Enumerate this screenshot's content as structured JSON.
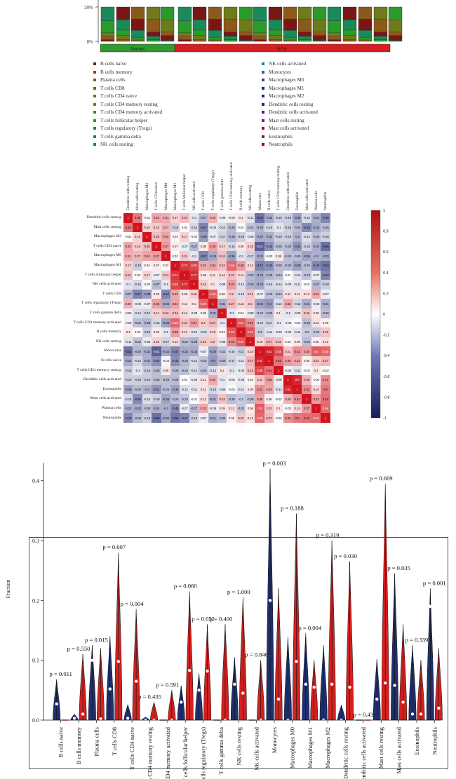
{
  "stacked_bar": {
    "y_ticks": [
      "20%",
      "0%"
    ],
    "groups": [
      {
        "label": "Normal",
        "color": "#2f9a2f"
      },
      {
        "label": "KOA",
        "color": "#d42020"
      }
    ]
  },
  "legend": {
    "left": [
      {
        "label": "B cells naive",
        "color": "#8b1a1a"
      },
      {
        "label": "B cells memory",
        "color": "#a0401f"
      },
      {
        "label": "Plasma cells",
        "color": "#8b5a1a"
      },
      {
        "label": "T cells CD8",
        "color": "#7a6b16"
      },
      {
        "label": "T cells CD4 naive",
        "color": "#6f7a1a"
      },
      {
        "label": "T cells CD4 memory resting",
        "color": "#5a8a1a"
      },
      {
        "label": "T cells CD4 memory activated",
        "color": "#3f8f20"
      },
      {
        "label": "T cells follicular helper",
        "color": "#2a9a2a"
      },
      {
        "label": "T cells regulatory (Tregs)",
        "color": "#20903f"
      },
      {
        "label": "T cells gamma delta",
        "color": "#1a8a5a"
      },
      {
        "label": "NK cells resting",
        "color": "#168a7a"
      }
    ],
    "right": [
      {
        "label": "NK cells activated",
        "color": "#168a8a"
      },
      {
        "label": "Monocytes",
        "color": "#1a6a8a"
      },
      {
        "label": "Macrophages M0",
        "color": "#1a4f8a"
      },
      {
        "label": "Macrophages M1",
        "color": "#1f308a"
      },
      {
        "label": "Macrophages M2",
        "color": "#2a1f8a"
      },
      {
        "label": "Dendritic cells resting",
        "color": "#401a8a"
      },
      {
        "label": "Dendritic cells activated",
        "color": "#5a1a8a"
      },
      {
        "label": "Mast cells resting",
        "color": "#7a1a7a"
      },
      {
        "label": "Mast cells activated",
        "color": "#8a1a5a"
      },
      {
        "label": "Eosinophils",
        "color": "#8a1a40"
      },
      {
        "label": "Neutrophils",
        "color": "#8a1a2a"
      }
    ]
  },
  "heatmap": {
    "labels": [
      "Dendritic cells resting",
      "Mast cells resting",
      "Macrophages M2",
      "T cells CD4 naive",
      "Macrophages M0",
      "Macrophages M1",
      "T cells follicular helper",
      "NK cells activated",
      "T cells CD8",
      "T cells regulatory (Tregs)",
      "T cells gamma delta",
      "T cells CD4 memory activated",
      "B cells memory",
      "NK cells resting",
      "Monocytes",
      "B cells naive",
      "T cells CD4 memory resting",
      "Dendritic cells activated",
      "Eosinophils",
      "Mast cells activated",
      "Plasma cells",
      "Neutrophils"
    ],
    "colorbar_ticks": [
      "1",
      "0.8",
      "0.6",
      "0.4",
      "0.2",
      "0",
      "-0.2",
      "-0.4",
      "-0.6",
      "-0.8",
      "-1"
    ],
    "matrix": [
      [
        1,
        0.49,
        -0.01,
        0.33,
        0.31,
        0.17,
        0.24,
        -0.1,
        -0.27,
        0.29,
        -0.06,
        -0.06,
        0.1,
        -0.11,
        -0.53,
        -0.32,
        -0.19,
        -0.19,
        -0.36,
        -0.15,
        -0.31,
        -0.46
      ],
      [
        0.49,
        1,
        0.16,
        0.19,
        0.27,
        -0.19,
        0.02,
        -0.15,
        -0.47,
        -0.09,
        -0.14,
        -0.25,
        0.02,
        -0.23,
        -0.28,
        -0.16,
        -0.1,
        -0.19,
        -0.26,
        -0.45,
        -0.33,
        -0.26
      ],
      [
        -0.01,
        0.16,
        1,
        0.25,
        0.34,
        0.04,
        0.17,
        -0.02,
        -0.38,
        -0.07,
        -0.17,
        -0.28,
        -0.19,
        -0.08,
        -0.32,
        -0.31,
        -0.19,
        -0.19,
        -0.3,
        -0.13,
        -0.25,
        -0.18
      ],
      [
        0.33,
        0.19,
        0.25,
        1,
        0.37,
        0.07,
        -0.07,
        -0.27,
        0.08,
        0.35,
        0.17,
        -0.15,
        0.08,
        0.18,
        -0.61,
        -0.42,
        -0.25,
        -0.25,
        -0.41,
        -0.18,
        -0.31,
        -0.55
      ],
      [
        0.31,
        0.27,
        0.34,
        0.37,
        1,
        0.02,
        0.21,
        -0.1,
        -0.47,
        -0.33,
        0.24,
        -0.36,
        -0.1,
        -0.17,
        -0.33,
        -0.03,
        0.08,
        -0.25,
        -0.25,
        -0.35,
        -0.3,
        -0.33
      ],
      [
        0.17,
        -0.19,
        0.04,
        0.07,
        0.02,
        1,
        0.74,
        0.69,
        0.32,
        0.34,
        0.24,
        0.56,
        0.36,
        0.14,
        -0.47,
        -0.43,
        -0.26,
        -0.26,
        -0.36,
        -0.25,
        -0.45,
        -0.53
      ],
      [
        0.24,
        0.02,
        0.17,
        -0.07,
        0.21,
        0.74,
        1,
        0.77,
        0.09,
        0.11,
        0.14,
        0.24,
        0.14,
        -0.26,
        -0.33,
        -0.28,
        -0.24,
        0.01,
        -0.12,
        -0.23,
        -0.07,
        -0.47
      ],
      [
        -0.1,
        -0.15,
        -0.02,
        -0.27,
        -0.1,
        0.69,
        0.77,
        1,
        0.18,
        0.1,
        -0.08,
        0.37,
        -0.12,
        -0.29,
        -0.33,
        -0.15,
        -0.14,
        -0.08,
        -0.11,
        -0.01,
        -0.27,
        -0.19
      ],
      [
        -0.27,
        -0.47,
        -0.38,
        0.08,
        -0.47,
        0.32,
        0.09,
        0.18,
        1,
        0.59,
        0.06,
        0.2,
        -0.13,
        0.21,
        -0.07,
        -0.23,
        -0.24,
        0.11,
        0.11,
        0.12,
        0.32,
        -0.07
      ],
      [
        0.29,
        -0.09,
        -0.07,
        0.35,
        -0.33,
        0.34,
        0.11,
        0.1,
        0.59,
        1,
        -0.31,
        0.27,
        0.16,
        0.2,
        -0.36,
        -0.4,
        -0.13,
        0.32,
        -0.16,
        -0.31,
        -0.08,
        -0.31
      ],
      [
        -0.06,
        -0.14,
        -0.17,
        0.17,
        0.24,
        0.24,
        0.14,
        -0.08,
        0.06,
        -0.31,
        1,
        -0.1,
        0.04,
        -0.08,
        -0.23,
        -0.26,
        0.1,
        -0.1,
        -0.09,
        0.23,
        0.09,
        -0.26
      ],
      [
        -0.06,
        -0.25,
        -0.28,
        -0.15,
        -0.36,
        0.56,
        0.24,
        0.37,
        0.2,
        0.27,
        -0.1,
        1,
        0.62,
        0.43,
        -0.16,
        -0.17,
        -0.1,
        -0.06,
        -0.02,
        -0.25,
        0.12,
        0.06
      ],
      [
        0.1,
        0.02,
        -0.19,
        0.08,
        -0.1,
        0.36,
        0.14,
        -0.12,
        -0.13,
        0.16,
        0.04,
        0.62,
        1,
        0.62,
        -0.2,
        -0.11,
        -0.08,
        -0.08,
        -0.11,
        -0.2,
        -0.22,
        0.22
      ],
      [
        -0.11,
        -0.23,
        -0.08,
        0.18,
        -0.17,
        0.14,
        -0.26,
        -0.29,
        0.21,
        0.2,
        -0.08,
        0.43,
        0.62,
        1,
        0.15,
        0.27,
        0.23,
        0.03,
        0.08,
        -0.25,
        0.06,
        0.12
      ],
      [
        -0.53,
        -0.28,
        -0.32,
        -0.61,
        -0.33,
        -0.47,
        -0.33,
        -0.33,
        -0.07,
        -0.36,
        -0.23,
        -0.16,
        -0.2,
        0.15,
        1,
        0.82,
        0.68,
        0.21,
        0.41,
        0.36,
        0.6,
        0.56
      ],
      [
        -0.32,
        -0.16,
        -0.31,
        -0.42,
        -0.03,
        -0.43,
        -0.28,
        -0.15,
        -0.23,
        -0.4,
        -0.26,
        -0.17,
        -0.11,
        0.27,
        0.82,
        1,
        0.51,
        0.36,
        0.33,
        0.06,
        0.22,
        0.27
      ],
      [
        -0.19,
        -0.1,
        -0.19,
        -0.25,
        0.08,
        -0.26,
        -0.24,
        -0.14,
        -0.24,
        -0.13,
        0.1,
        -0.1,
        -0.08,
        0.23,
        0.68,
        0.51,
        1,
        -0.06,
        -0.11,
        -0.02,
        0.1,
        -0.02
      ],
      [
        -0.19,
        -0.19,
        -0.19,
        -0.25,
        -0.25,
        -0.26,
        0.01,
        -0.08,
        0.11,
        0.32,
        -0.1,
        -0.06,
        -0.08,
        0.03,
        0.21,
        0.36,
        -0.06,
        1,
        0.8,
        0.28,
        -0.02,
        0.42
      ],
      [
        -0.36,
        -0.26,
        -0.3,
        -0.41,
        -0.25,
        -0.36,
        -0.12,
        -0.11,
        0.11,
        -0.16,
        -0.09,
        -0.02,
        -0.11,
        0.08,
        0.41,
        0.33,
        -0.11,
        0.8,
        1,
        0.43,
        0.14,
        0.5
      ],
      [
        -0.15,
        -0.45,
        -0.13,
        -0.18,
        -0.35,
        -0.25,
        -0.23,
        -0.01,
        0.12,
        -0.31,
        0.23,
        -0.25,
        -0.2,
        -0.25,
        0.36,
        0.06,
        -0.02,
        0.28,
        0.43,
        1,
        0.37,
        0.53
      ],
      [
        -0.31,
        -0.33,
        -0.25,
        -0.31,
        -0.3,
        -0.45,
        -0.07,
        -0.27,
        0.32,
        -0.08,
        0.09,
        0.12,
        -0.22,
        0.06,
        0.6,
        0.22,
        0.1,
        -0.02,
        0.14,
        0.37,
        1,
        0.56
      ],
      [
        -0.46,
        -0.26,
        -0.18,
        -0.55,
        -0.33,
        -0.53,
        -0.47,
        -0.19,
        -0.07,
        -0.31,
        -0.26,
        0.06,
        0.22,
        0.12,
        0.56,
        0.27,
        -0.02,
        0.42,
        0.5,
        0.53,
        0.56,
        1
      ]
    ]
  },
  "chart_data": {
    "type": "violin",
    "ylabel": "Fraction",
    "ylim": [
      0,
      0.45
    ],
    "y_ticks": [
      "0.0",
      "0.1",
      "0.2",
      "0.3",
      "0.4"
    ],
    "series": [
      {
        "name": "Normal",
        "color": "#1f2f6f"
      },
      {
        "name": "KOA",
        "color": "#d42020"
      }
    ],
    "categories": [
      {
        "name": "B cells naive",
        "p": "p = 0.011",
        "normal_max": 0.068,
        "normal_med": 0.027,
        "koa_max": 0.0,
        "koa_med": 0.0
      },
      {
        "name": "B cells memory",
        "p": "p = 0.550",
        "normal_max": 0.01,
        "normal_med": 0.003,
        "koa_max": 0.11,
        "koa_med": 0.01
      },
      {
        "name": "Plasma cells",
        "p": "p = 0.015",
        "normal_max": 0.125,
        "normal_med": 0.1,
        "koa_max": 0.12,
        "koa_med": 0.002
      },
      {
        "name": "T cells CD8",
        "p": "p = 0.607",
        "normal_max": 0.14,
        "normal_med": 0.052,
        "koa_max": 0.28,
        "koa_med": 0.098
      },
      {
        "name": "T cells CD4 naive",
        "p": "p = 0.004",
        "normal_max": 0.026,
        "normal_med": 0.003,
        "koa_max": 0.185,
        "koa_med": 0.065
      },
      {
        "name": "T cells CD4 memory resting",
        "p": "p = 0.435",
        "normal_max": 0.005,
        "normal_med": 0.0,
        "koa_max": 0.03,
        "koa_med": 0.0
      },
      {
        "name": "T cells CD4 memory activated",
        "p": "p = 0.591",
        "normal_max": 0.0,
        "normal_med": 0.0,
        "koa_max": 0.05,
        "koa_med": 0.0
      },
      {
        "name": "T cells follicular helper",
        "p": "p = 0.060",
        "normal_max": 0.058,
        "normal_med": 0.03,
        "koa_max": 0.215,
        "koa_med": 0.083
      },
      {
        "name": "T cells regulatory (Tregs)",
        "p": "p = 0.052",
        "normal_max": 0.078,
        "normal_med": 0.05,
        "koa_max": 0.16,
        "koa_med": 0.082
      },
      {
        "name": "T cells gamma delta",
        "p": "p = 0.400",
        "normal_max": 0.0,
        "normal_med": 0.0,
        "koa_max": 0.16,
        "koa_med": 0.0
      },
      {
        "name": "NK cells resting",
        "p": "p = 1.000",
        "normal_max": 0.105,
        "normal_med": 0.06,
        "koa_max": 0.205,
        "koa_med": 0.045
      },
      {
        "name": "NK cells activated",
        "p": "p = 0.846",
        "normal_max": 0.0,
        "normal_med": 0.0,
        "koa_max": 0.1,
        "koa_med": 0.0
      },
      {
        "name": "Monocytes",
        "p": "p = 0.003",
        "normal_max": 0.42,
        "normal_med": 0.2,
        "koa_max": 0.22,
        "koa_med": 0.035
      },
      {
        "name": "Macrophages M0",
        "p": "p = 0.188",
        "normal_max": 0.138,
        "normal_med": 0.0,
        "koa_max": 0.345,
        "koa_med": 0.098
      },
      {
        "name": "Macrophages M1",
        "p": "p = 0.004",
        "normal_max": 0.145,
        "normal_med": 0.06,
        "koa_max": 0.1,
        "koa_med": 0.055
      },
      {
        "name": "Macrophages M2",
        "p": "p = 0.319",
        "normal_max": 0.125,
        "normal_med": 0.0,
        "koa_max": 0.3,
        "koa_med": 0.06
      },
      {
        "name": "Dendritic cells resting",
        "p": "p = 0.030",
        "normal_max": 0.025,
        "normal_med": 0.0,
        "koa_max": 0.265,
        "koa_med": 0.055
      },
      {
        "name": "Dendritic cells activated",
        "p": "p = 0.43",
        "normal_max": 0.0,
        "normal_med": 0.0,
        "koa_max": 0.0,
        "koa_med": 0.0
      },
      {
        "name": "Mast cells resting",
        "p": "p = 0.669",
        "normal_max": 0.102,
        "normal_med": 0.035,
        "koa_max": 0.395,
        "koa_med": 0.062
      },
      {
        "name": "Mast cells activated",
        "p": "p = 0.035",
        "normal_max": 0.245,
        "normal_med": 0.058,
        "koa_max": 0.16,
        "koa_med": 0.03
      },
      {
        "name": "Eosinophils",
        "p": "p = 0.339",
        "normal_max": 0.125,
        "normal_med": 0.01,
        "koa_max": 0.1,
        "koa_med": 0.01
      },
      {
        "name": "Neutrophils",
        "p": "p = 0.001",
        "normal_max": 0.22,
        "normal_med": 0.19,
        "koa_max": 0.12,
        "koa_med": 0.02
      }
    ],
    "x_labels": [
      "B cells naive",
      "B cells memory",
      "Plasma cells",
      "T cells CD8",
      "T cells CD4 naive",
      "s CD4 memory resting",
      "CD4 memory activated",
      "T cells follicular helper",
      "cells regulatory (Tregs)",
      "T cells gamma delta",
      "NK cells resting",
      "NK cells activated",
      "Monocytes",
      "Macrophages M0",
      "Macrophages M1",
      "Macrophages M2",
      "Dendritic cells resting",
      "endritic cells activated",
      "Mast cells resting",
      "Mast cells activated",
      "Eosinophils",
      "Neutrophils"
    ]
  }
}
